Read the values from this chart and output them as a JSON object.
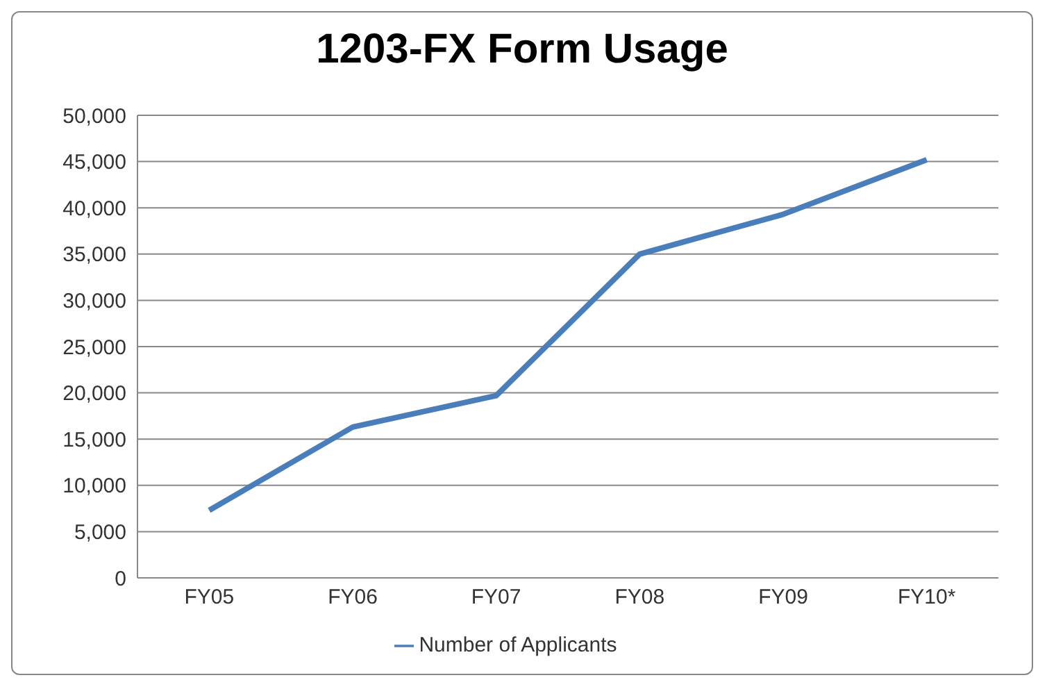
{
  "chart_data": {
    "type": "line",
    "title": "1203-FX Form Usage",
    "categories": [
      "FY05",
      "FY06",
      "FY07",
      "FY08",
      "FY09",
      "FY10*"
    ],
    "series": [
      {
        "name": "Number of Applicants",
        "color": "#4a7ebb",
        "values": [
          7300,
          16300,
          19700,
          35000,
          39300,
          45200
        ]
      }
    ],
    "ylim": [
      0,
      50000
    ],
    "yticks": [
      {
        "value": 0,
        "label": "0"
      },
      {
        "value": 5000,
        "label": "5,000"
      },
      {
        "value": 10000,
        "label": "10,000"
      },
      {
        "value": 15000,
        "label": "15,000"
      },
      {
        "value": 20000,
        "label": "20,000"
      },
      {
        "value": 25000,
        "label": "25,000"
      },
      {
        "value": 30000,
        "label": "30,000"
      },
      {
        "value": 35000,
        "label": "35,000"
      },
      {
        "value": 40000,
        "label": "40,000"
      },
      {
        "value": 45000,
        "label": "45,000"
      },
      {
        "value": 50000,
        "label": "50,000"
      }
    ],
    "grid": "y",
    "legend": "bottom",
    "marker": "none",
    "line_style": "solid"
  }
}
